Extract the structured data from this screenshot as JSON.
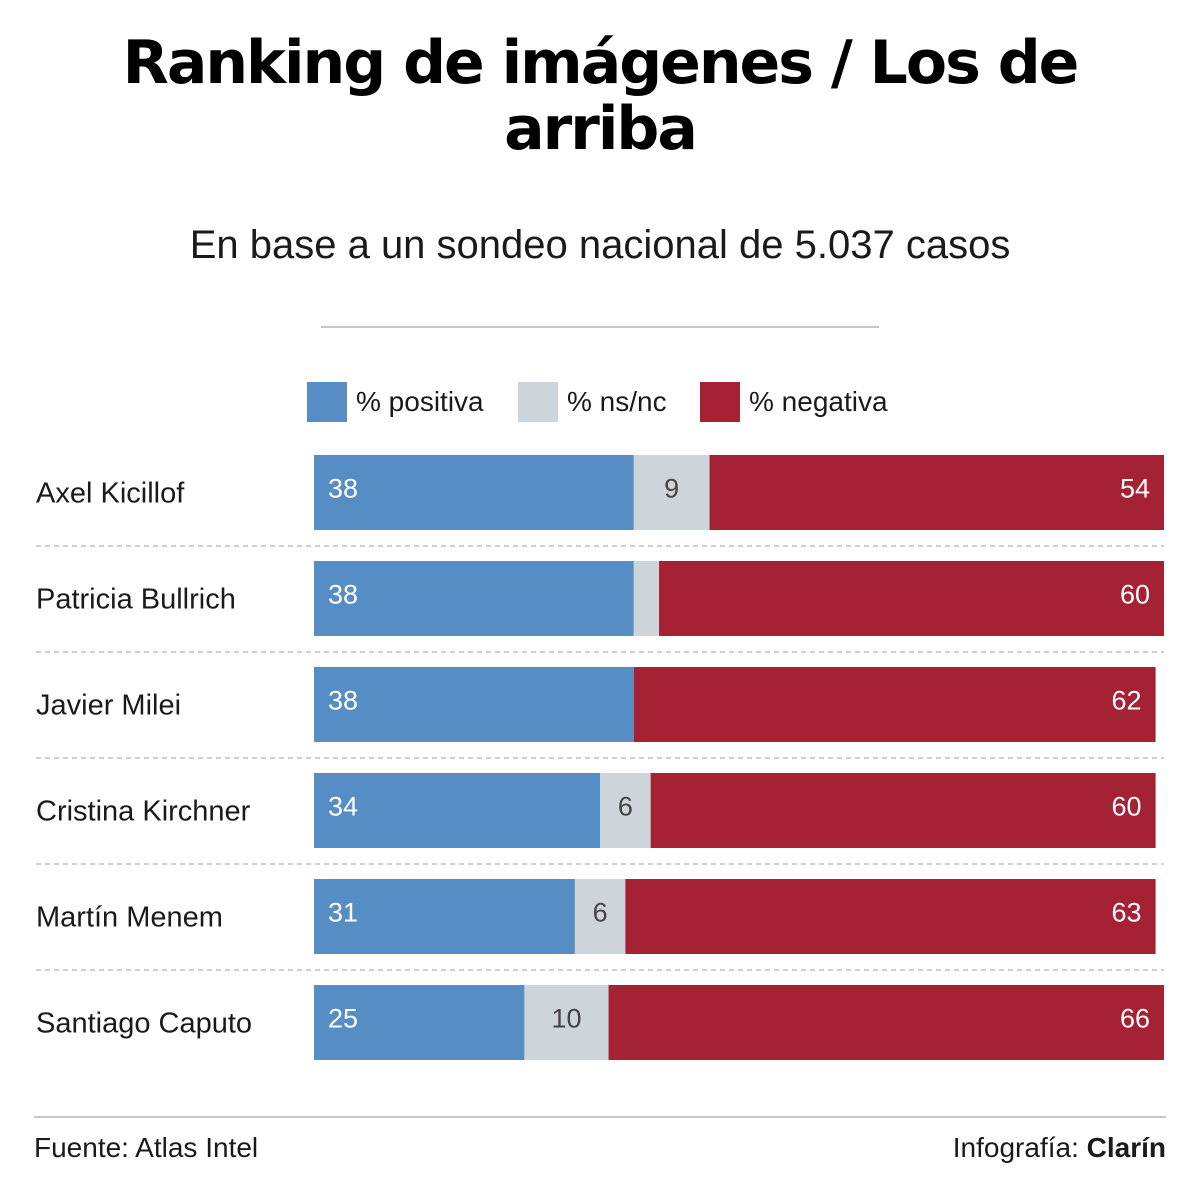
{
  "title": "Ranking de imágenes / Los de arriba",
  "subtitle": "En base a un sondeo nacional de 5.037 casos",
  "colors": {
    "positive": "#578dc5",
    "nsnc": "#cdd4da",
    "negative": "#a52134"
  },
  "legend": [
    {
      "key": "positive",
      "label": "% positiva"
    },
    {
      "key": "nsnc",
      "label": "% ns/nc"
    },
    {
      "key": "negative",
      "label": "% negativa"
    }
  ],
  "chart_data": {
    "type": "bar",
    "orientation": "horizontal",
    "stacked": true,
    "title": "Ranking de imágenes / Los de arriba",
    "subtitle": "En base a un sondeo nacional de 5.037 casos",
    "categories": [
      "Axel Kicillof",
      "Patricia Bullrich",
      "Javier Milei",
      "Cristina Kirchner",
      "Martín Menem",
      "Santiago Caputo"
    ],
    "series": [
      {
        "key": "positive",
        "name": "% positiva",
        "values": [
          38,
          38,
          38,
          34,
          31,
          25
        ],
        "labels": [
          "38",
          "38",
          "38",
          "34",
          "31",
          "25"
        ]
      },
      {
        "key": "nsnc",
        "name": "% ns/nc",
        "values": [
          9,
          3,
          0,
          6,
          6,
          10
        ],
        "labels": [
          "9",
          "",
          "",
          "6",
          "6",
          "10"
        ]
      },
      {
        "key": "negative",
        "name": "% negativa",
        "values": [
          54,
          60,
          62,
          60,
          63,
          66
        ],
        "labels": [
          "54",
          "60",
          "62",
          "60",
          "63",
          "66"
        ]
      }
    ],
    "xlim": [
      0,
      101
    ],
    "grid": false,
    "legend_position": "top"
  },
  "footer": {
    "source": "Fuente: Atlas Intel",
    "credit_prefix": "Infografía: ",
    "credit_brand": "Clarín"
  }
}
